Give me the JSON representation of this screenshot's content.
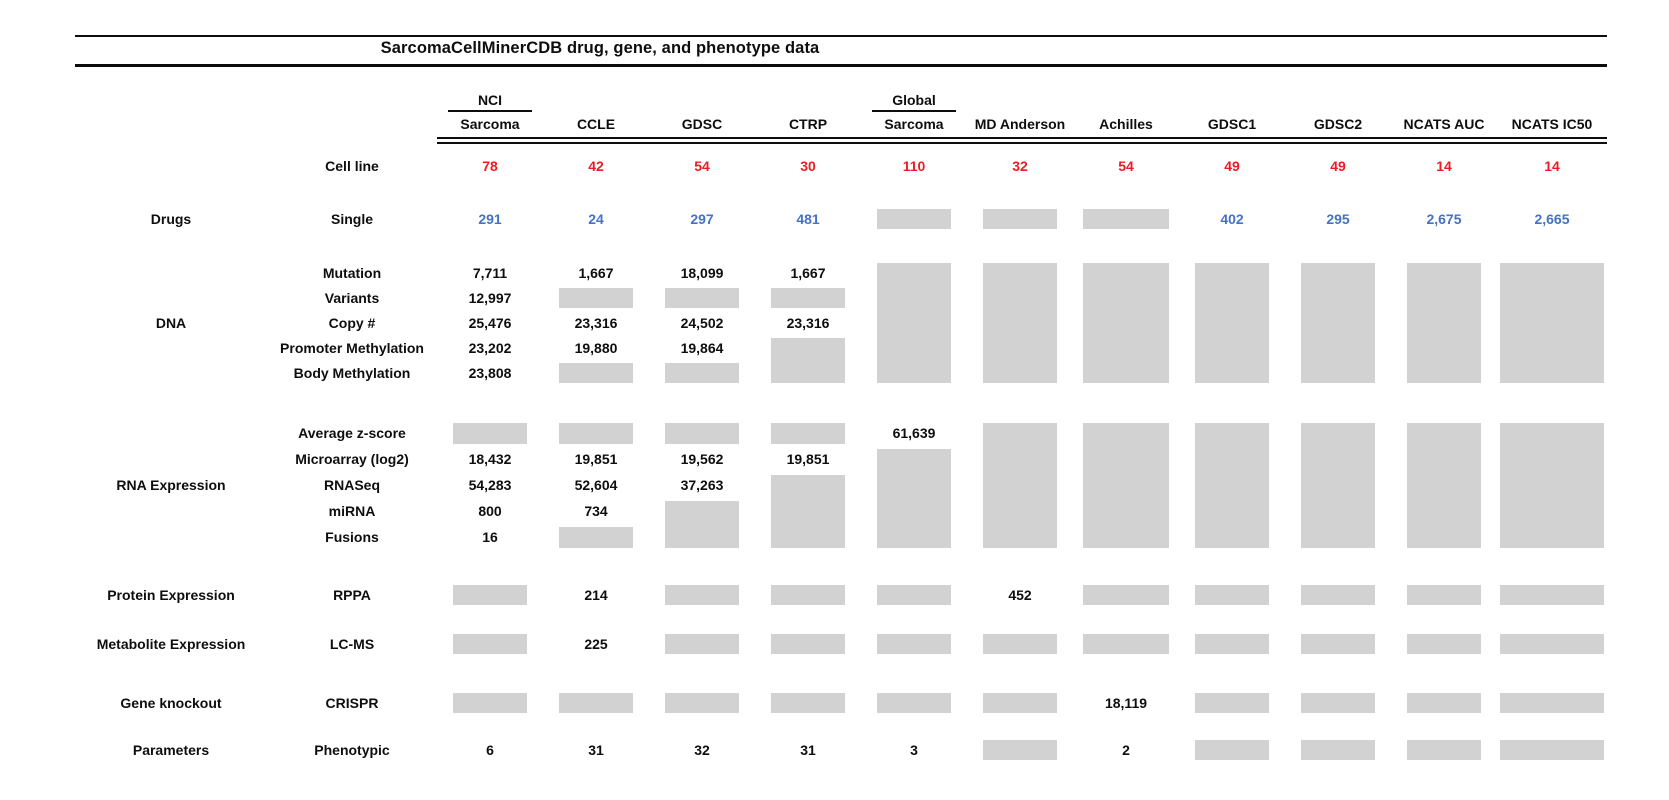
{
  "title": "SarcomaCellMinerCDB drug, gene, and phenotype data",
  "colors": {
    "cell_line_count": "#ed1c24",
    "drug_count": "#4472c4",
    "missing_box": "#d2d2d2",
    "text": "#0e0e0e"
  },
  "columns": [
    {
      "top": "NCI",
      "label": "Sarcoma"
    },
    {
      "top": "",
      "label": "CCLE"
    },
    {
      "top": "",
      "label": "GDSC"
    },
    {
      "top": "",
      "label": "CTRP"
    },
    {
      "top": "Global",
      "label": "Sarcoma"
    },
    {
      "top": "",
      "label": "MD Anderson"
    },
    {
      "top": "",
      "label": "Achilles"
    },
    {
      "top": "",
      "label": "GDSC1"
    },
    {
      "top": "",
      "label": "GDSC2"
    },
    {
      "top": "",
      "label": "NCATS AUC"
    },
    {
      "top": "",
      "label": "NCATS IC50"
    }
  ],
  "cell_line_row": {
    "label": "Cell line",
    "counts": [
      "78",
      "42",
      "54",
      "30",
      "110",
      "32",
      "54",
      "49",
      "49",
      "14",
      "14"
    ]
  },
  "sections": [
    {
      "category": "Drugs",
      "value_color": "drug_count",
      "rows": [
        {
          "label": "Single",
          "cells": [
            "291",
            "24",
            "297",
            "481",
            {
              "box": 1
            },
            {
              "box": 1
            },
            {
              "box": 1
            },
            "402",
            "295",
            "2,675",
            "2,665"
          ]
        }
      ]
    },
    {
      "category": "DNA",
      "rows": [
        {
          "label": "Mutation",
          "cells": [
            "7,711",
            "1,667",
            "18,099",
            "1,667",
            {
              "box": 5
            },
            {
              "box": 5
            },
            {
              "box": 5
            },
            {
              "box": 5
            },
            {
              "box": 5
            },
            {
              "box": 5
            },
            {
              "box": 5
            }
          ]
        },
        {
          "label": "Variants",
          "cells": [
            "12,997",
            {
              "box": 1
            },
            {
              "box": 1
            },
            {
              "box": 1
            },
            null,
            null,
            null,
            null,
            null,
            null,
            null
          ]
        },
        {
          "label": "Copy #",
          "cells": [
            "25,476",
            "23,316",
            "24,502",
            "23,316",
            null,
            null,
            null,
            null,
            null,
            null,
            null
          ]
        },
        {
          "label": "Promoter Methylation",
          "cells": [
            "23,202",
            "19,880",
            "19,864",
            {
              "box": 2
            },
            null,
            null,
            null,
            null,
            null,
            null,
            null
          ]
        },
        {
          "label": "Body Methylation",
          "cells": [
            "23,808",
            {
              "box": 1
            },
            {
              "box": 1
            },
            null,
            null,
            null,
            null,
            null,
            null,
            null,
            null
          ]
        }
      ]
    },
    {
      "category": "RNA Expression",
      "rows": [
        {
          "label": "Average z-score",
          "cells": [
            {
              "box": 1
            },
            {
              "box": 1
            },
            {
              "box": 1
            },
            {
              "box": 1
            },
            "61,639",
            {
              "box": 5
            },
            {
              "box": 5
            },
            {
              "box": 5
            },
            {
              "box": 5
            },
            {
              "box": 5
            },
            {
              "box": 5
            }
          ]
        },
        {
          "label": "Microarray (log2)",
          "cells": [
            "18,432",
            "19,851",
            "19,562",
            "19,851",
            {
              "box": 4
            },
            null,
            null,
            null,
            null,
            null,
            null
          ]
        },
        {
          "label": "RNASeq",
          "cells": [
            "54,283",
            "52,604",
            "37,263",
            {
              "box": 3
            },
            null,
            null,
            null,
            null,
            null,
            null,
            null
          ]
        },
        {
          "label": "miRNA",
          "cells": [
            "800",
            "734",
            {
              "box": 2
            },
            null,
            null,
            null,
            null,
            null,
            null,
            null,
            null
          ]
        },
        {
          "label": "Fusions",
          "cells": [
            "16",
            {
              "box": 1
            },
            null,
            null,
            null,
            null,
            null,
            null,
            null,
            null,
            null
          ]
        }
      ]
    },
    {
      "category": "Protein Expression",
      "rows": [
        {
          "label": "RPPA",
          "cells": [
            {
              "box": 1
            },
            "214",
            {
              "box": 1
            },
            {
              "box": 1
            },
            {
              "box": 1
            },
            "452",
            {
              "box": 1
            },
            {
              "box": 1
            },
            {
              "box": 1
            },
            {
              "box": 1
            },
            {
              "box": 1
            }
          ]
        }
      ]
    },
    {
      "category": "Metabolite Expression",
      "rows": [
        {
          "label": "LC-MS",
          "cells": [
            {
              "box": 1
            },
            "225",
            {
              "box": 1
            },
            {
              "box": 1
            },
            {
              "box": 1
            },
            {
              "box": 1
            },
            {
              "box": 1
            },
            {
              "box": 1
            },
            {
              "box": 1
            },
            {
              "box": 1
            },
            {
              "box": 1
            }
          ]
        }
      ]
    },
    {
      "category": "Gene knockout",
      "rows": [
        {
          "label": "CRISPR",
          "cells": [
            {
              "box": 1
            },
            {
              "box": 1
            },
            {
              "box": 1
            },
            {
              "box": 1
            },
            {
              "box": 1
            },
            {
              "box": 1
            },
            "18,119",
            {
              "box": 1
            },
            {
              "box": 1
            },
            {
              "box": 1
            },
            {
              "box": 1
            }
          ]
        }
      ]
    },
    {
      "category": "Parameters",
      "rows": [
        {
          "label": "Phenotypic",
          "cells": [
            "6",
            "31",
            "32",
            "31",
            "3",
            {
              "box": 1
            },
            "2",
            {
              "box": 1
            },
            {
              "box": 1
            },
            {
              "box": 1
            },
            {
              "box": 1
            }
          ]
        }
      ]
    }
  ]
}
